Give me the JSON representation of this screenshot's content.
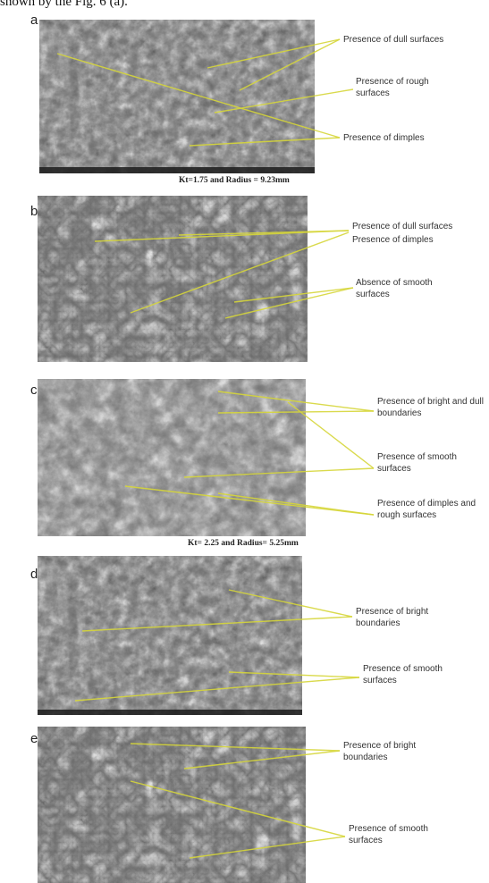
{
  "intro_text": "shown by the Fig. 6 (a).",
  "colors": {
    "arrow": "#d6d63a",
    "sem_base": "#6f6f6f"
  },
  "panels": [
    {
      "label": "a",
      "caption": "Kt=1.75 and Radius = 9.23mm",
      "annotations": [
        "Presence of dull surfaces",
        "Presence of rough surfaces",
        "Presence of dimples"
      ]
    },
    {
      "label": "b",
      "caption": "",
      "annotations": [
        "Presence of dull surfaces",
        "Presence of dimples",
        "Absence of smooth surfaces"
      ]
    },
    {
      "label": "c",
      "caption": "Kt= 2.25 and Radius= 5.25mm",
      "annotations": [
        "Presence of bright and dull boundaries",
        "Presence of smooth surfaces",
        "Presence of dimples and rough surfaces"
      ]
    },
    {
      "label": "d",
      "caption": "",
      "annotations": [
        "Presence of bright boundaries",
        "Presence of smooth surfaces"
      ]
    },
    {
      "label": "e",
      "caption": "",
      "annotations": [
        "Presence of bright boundaries",
        "Presence of smooth surfaces"
      ]
    }
  ]
}
